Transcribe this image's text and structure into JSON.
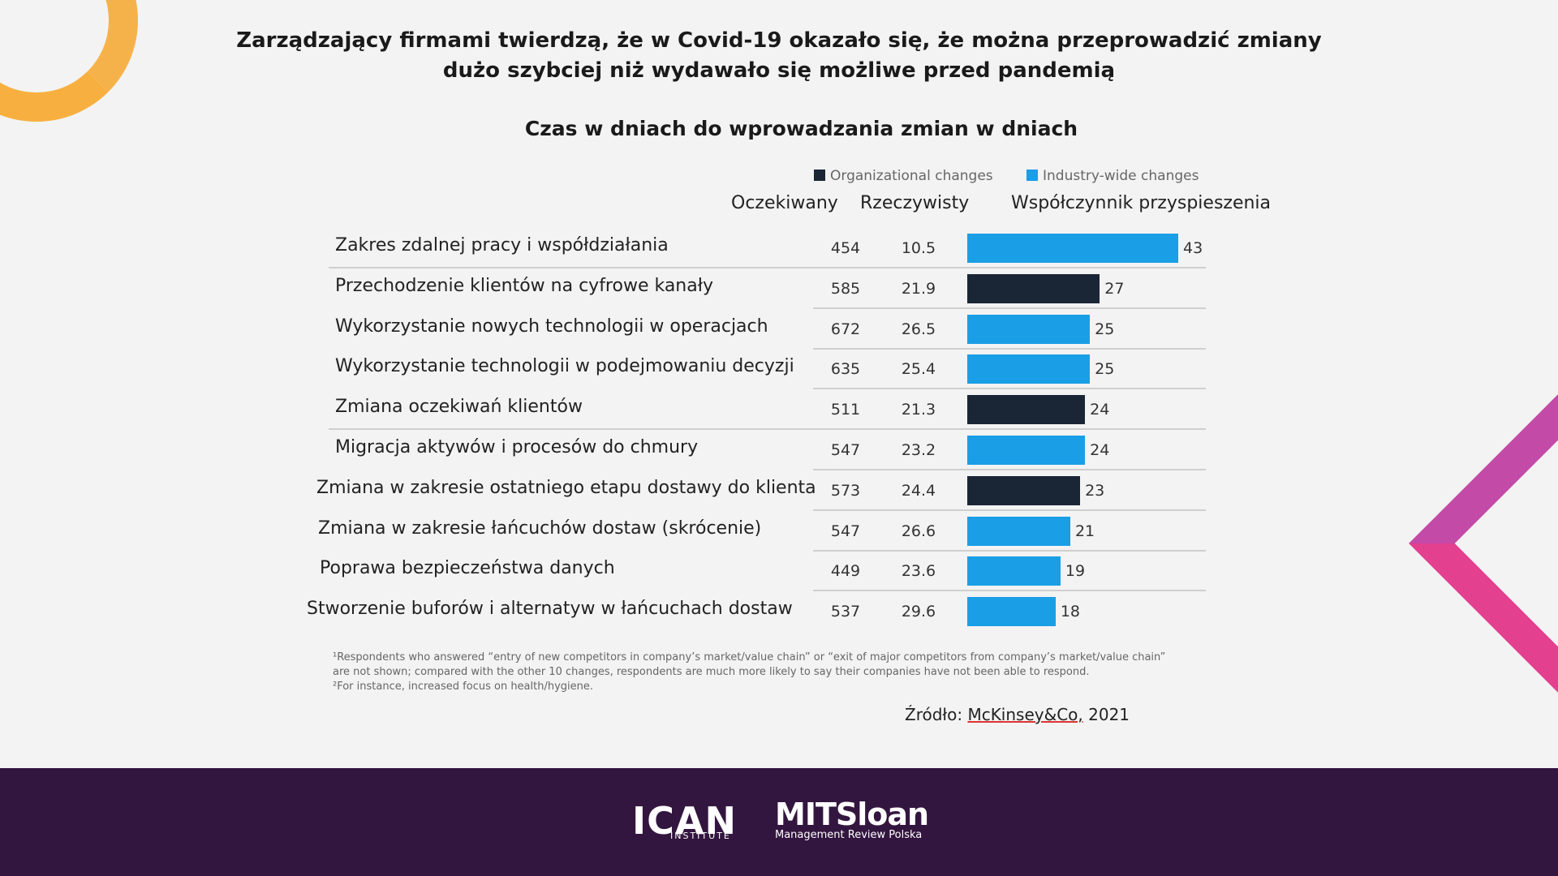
{
  "title_line1": "Zarządzający firmami twierdzą, że w Covid-19 okazało się, że można przeprowadzić zmiany",
  "title_line2": "dużo szybciej niż wydawało się możliwe przed pandemią",
  "chart_data": {
    "type": "bar",
    "title": "Czas w dniach do wprowadzania zmian w dniach",
    "legend": [
      {
        "name": "Organizational changes",
        "color": "#1a2535"
      },
      {
        "name": "Industry-wide changes",
        "color": "#1a9ee6"
      }
    ],
    "columns": [
      "Oczekiwany",
      "Rzeczywisty",
      "Współczynnik przyspieszenia"
    ],
    "xlim": [
      0,
      43
    ],
    "rows": [
      {
        "label": "Zakres zdalnej pracy i współdziałania",
        "expected": "454",
        "actual": "10.5",
        "value": 43,
        "category": "Industry-wide changes"
      },
      {
        "label": "Przechodzenie klientów na cyfrowe kanały",
        "expected": "585",
        "actual": "21.9",
        "value": 27,
        "category": "Organizational changes"
      },
      {
        "label": "Wykorzystanie nowych technologii w operacjach",
        "expected": "672",
        "actual": "26.5",
        "value": 25,
        "category": "Industry-wide changes"
      },
      {
        "label": "Wykorzystanie technologii w podejmowaniu decyzji",
        "expected": "635",
        "actual": "25.4",
        "value": 25,
        "category": "Industry-wide changes"
      },
      {
        "label": "Zmiana oczekiwań klientów",
        "expected": "511",
        "actual": "21.3",
        "value": 24,
        "category": "Organizational changes"
      },
      {
        "label": "Migracja aktywów i procesów do chmury",
        "expected": "547",
        "actual": "23.2",
        "value": 24,
        "category": "Industry-wide changes"
      },
      {
        "label": "Zmiana w zakresie ostatniego etapu dostawy do klienta",
        "expected": "573",
        "actual": "24.4",
        "value": 23,
        "category": "Organizational changes"
      },
      {
        "label": "Zmiana w zakresie łańcuchów dostaw (skrócenie)",
        "expected": "547",
        "actual": "26.6",
        "value": 21,
        "category": "Industry-wide changes"
      },
      {
        "label": "Poprawa bezpieczeństwa danych",
        "expected": "449",
        "actual": "23.6",
        "value": 19,
        "category": "Industry-wide changes"
      },
      {
        "label": "Stworzenie buforów i alternatyw w łańcuchach dostaw",
        "expected": "537",
        "actual": "29.6",
        "value": 18,
        "category": "Industry-wide changes"
      }
    ]
  },
  "footnote_line1": "¹Respondents who answered “entry of new competitors in company’s market/value chain” or “exit of major competitors from company’s market/value chain”",
  "footnote_line2": "are not shown; compared with the other 10 changes, respondents are much more likely to say their companies have not been able to respond.",
  "footnote_line3": "²For instance, increased focus on health/hygiene.",
  "source_prefix": "Źródło: ",
  "source_name": "McKinsey&Co,",
  "source_year": " 2021",
  "footer": {
    "ican_logo": "ICAN",
    "ican_sub": "INSTITUTE",
    "mit_logo": "MITSloan",
    "mit_sub": "Management Review Polska"
  }
}
